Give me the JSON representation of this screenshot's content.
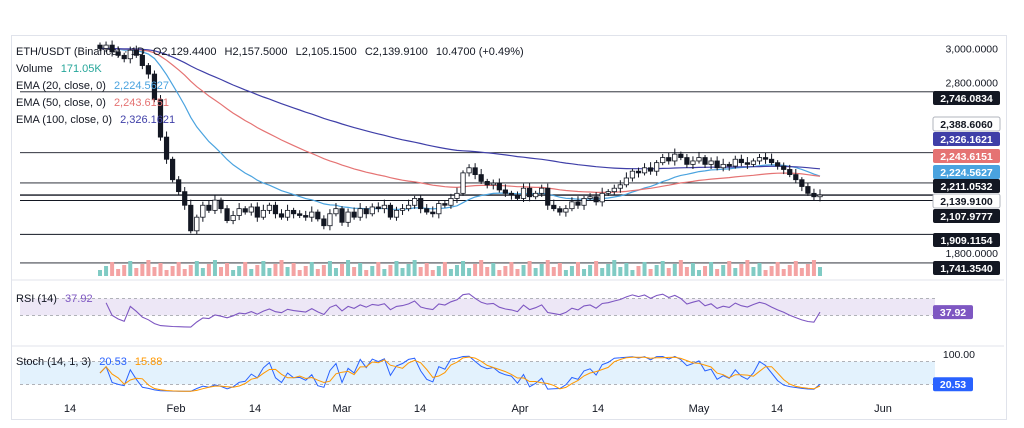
{
  "legend": {
    "symbol": "ETH/USDT (Binance) · 1D",
    "ohlc": {
      "o": "O2,129.4400",
      "h": "H2,157.5000",
      "l": "L2,105.1500",
      "c": "C2,139.9100",
      "chg": "10.4700 (+0.49%)"
    },
    "volume_label": "Volume",
    "volume_value": "171.05K",
    "ema20_label": "EMA (20, close, 0)",
    "ema20_value": "2,224.5627",
    "ema50_label": "EMA (50, close, 0)",
    "ema50_value": "2,243.6151",
    "ema100_label": "EMA (100, close, 0)",
    "ema100_value": "2,326.1621",
    "rsi_label": "RSI (14)",
    "rsi_value": "37.92",
    "stoch_label": "Stoch (14, 1, 3)",
    "stoch_k": "20.53",
    "stoch_d": "15.88"
  },
  "colors": {
    "up": "#26a69a",
    "down": "#ef5350",
    "candle": "#131722",
    "ema20": "#4aa3df",
    "ema50": "#e57373",
    "ema100": "#3f3fa8",
    "rsi": "#7e57c2",
    "stochK": "#2962ff",
    "stochD": "#ff9800"
  },
  "chart_data": {
    "type": "candlestick",
    "price_axis": {
      "min": 1700,
      "max": 3050,
      "ticks": [
        "3,000.0000",
        "2,800.0000",
        "1,800.0000"
      ]
    },
    "time_axis": [
      "14",
      "Feb",
      "14",
      "Mar",
      "14",
      "Apr",
      "14",
      "May",
      "14",
      "Jun"
    ],
    "horizontal_levels": [
      2746.0834,
      2388.606,
      2211.0532,
      2139.91,
      2107.9777,
      1909.1154,
      1741.354
    ],
    "price_labels": [
      {
        "text": "2,746.0834",
        "style": "dark"
      },
      {
        "text": "2,388.6060",
        "style": "plain"
      },
      {
        "text": "2,326.1621",
        "style": "ema100"
      },
      {
        "text": "2,243.6151",
        "style": "ema50"
      },
      {
        "text": "2,224.5627",
        "style": "ema20"
      },
      {
        "text": "2,211.0532",
        "style": "dark"
      },
      {
        "text": "2,139.9100",
        "style": "plain"
      },
      {
        "text": "2,107.9777",
        "style": "dark"
      },
      {
        "text": "1,909.1154",
        "style": "dark"
      },
      {
        "text": "1,741.3540",
        "style": "dark"
      }
    ],
    "closes": [
      3000,
      3020,
      2980,
      2960,
      2940,
      2990,
      2960,
      2900,
      2850,
      2700,
      2480,
      2350,
      2230,
      2160,
      2080,
      1930,
      2010,
      2080,
      2050,
      2110,
      2060,
      1990,
      2020,
      2060,
      2040,
      2070,
      2010,
      2050,
      2080,
      2030,
      2010,
      2050,
      2030,
      2020,
      2010,
      2040,
      2000,
      1960,
      2030,
      2060,
      1980,
      2040,
      2010,
      2060,
      2030,
      2070,
      2060,
      2080,
      2010,
      2050,
      2060,
      2080,
      2120,
      2060,
      2040,
      2030,
      2090,
      2080,
      2120,
      2150,
      2270,
      2300,
      2260,
      2220,
      2200,
      2210,
      2170,
      2150,
      2140,
      2120,
      2180,
      2130,
      2150,
      2180,
      2080,
      2060,
      2040,
      2060,
      2100,
      2080,
      2120,
      2130,
      2100,
      2150,
      2160,
      2180,
      2200,
      2240,
      2280,
      2270,
      2300,
      2280,
      2330,
      2360,
      2340,
      2380,
      2360,
      2320,
      2340,
      2360,
      2320,
      2340,
      2300,
      2320,
      2310,
      2350,
      2330,
      2320,
      2340,
      2360,
      2350,
      2330,
      2310,
      2290,
      2260,
      2230,
      2190,
      2150,
      2130,
      2140
    ],
    "rsi": {
      "ylim": [
        0,
        100
      ],
      "upper": 70,
      "lower": 30,
      "value": 37.92
    },
    "stoch": {
      "ylim": [
        0,
        100
      ],
      "upper": 80,
      "lower": 20,
      "k": 20.53,
      "d": 15.88,
      "top_label": "100.00"
    }
  }
}
